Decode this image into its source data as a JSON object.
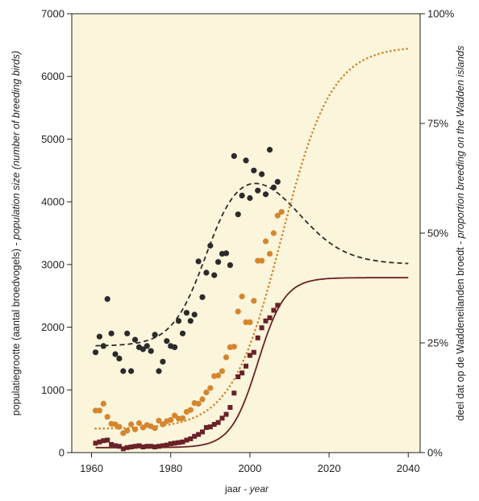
{
  "chart_data": {
    "type": "scatter",
    "xlim": [
      1955,
      2043
    ],
    "ylim_left": [
      0,
      7000
    ],
    "ylim_right": [
      0,
      1
    ],
    "x_ticks": [
      1960,
      1980,
      2000,
      2020,
      2040
    ],
    "y_left_ticks": [
      0,
      1000,
      2000,
      3000,
      4000,
      5000,
      6000,
      7000
    ],
    "y_right_ticks": [
      {
        "value": 0,
        "label": "0%"
      },
      {
        "value": 0.25,
        "label": "25%"
      },
      {
        "value": 0.5,
        "label": "50%"
      },
      {
        "value": 0.75,
        "label": "75%"
      },
      {
        "value": 1,
        "label": "100%"
      }
    ],
    "xlabel_nl": "jaar - ",
    "xlabel_en": "year",
    "ylabel_left_nl": "populatiegrootte (aantal broedvogels) - ",
    "ylabel_left_en": "population size (number of breeding birds)",
    "ylabel_right_nl": "deel dat op de Waddeneilanden broedt - ",
    "ylabel_right_en": "proportion breeding on the Wadden islands",
    "grid": false,
    "colors": {
      "background": "#fbf5dc",
      "dark": "#2b2b2b",
      "orange": "#d4862e",
      "maroon": "#6b2128"
    },
    "series": [
      {
        "marker": "circle",
        "color": "#2b2b2b",
        "axis": "left",
        "points": [
          [
            1961,
            1600
          ],
          [
            1962,
            1850
          ],
          [
            1963,
            1700
          ],
          [
            1964,
            2450
          ],
          [
            1965,
            1900
          ],
          [
            1966,
            1570
          ],
          [
            1967,
            1500
          ],
          [
            1968,
            1300
          ],
          [
            1969,
            1900
          ],
          [
            1970,
            1300
          ],
          [
            1971,
            1800
          ],
          [
            1972,
            1680
          ],
          [
            1973,
            1650
          ],
          [
            1974,
            1700
          ],
          [
            1975,
            1620
          ],
          [
            1976,
            1880
          ],
          [
            1977,
            1300
          ],
          [
            1978,
            1450
          ],
          [
            1979,
            1780
          ],
          [
            1980,
            1700
          ],
          [
            1981,
            1680
          ],
          [
            1982,
            2100
          ],
          [
            1983,
            1900
          ],
          [
            1984,
            2230
          ],
          [
            1985,
            2100
          ],
          [
            1986,
            2200
          ],
          [
            1987,
            3050
          ],
          [
            1988,
            2480
          ],
          [
            1989,
            2870
          ],
          [
            1990,
            3300
          ],
          [
            1991,
            2830
          ],
          [
            1992,
            3040
          ],
          [
            1993,
            3170
          ],
          [
            1994,
            3180
          ],
          [
            1995,
            2990
          ],
          [
            1996,
            4730
          ],
          [
            1997,
            3800
          ],
          [
            1998,
            4100
          ],
          [
            1999,
            4660
          ],
          [
            2000,
            4060
          ],
          [
            2001,
            4500
          ],
          [
            2002,
            4180
          ],
          [
            2003,
            4440
          ],
          [
            2004,
            4120
          ],
          [
            2005,
            4830
          ],
          [
            2006,
            4230
          ],
          [
            2007,
            4320
          ]
        ]
      },
      {
        "marker": "circle",
        "color": "#d4862e",
        "axis": "left",
        "points": [
          [
            1961,
            670
          ],
          [
            1962,
            670
          ],
          [
            1963,
            780
          ],
          [
            1964,
            570
          ],
          [
            1965,
            460
          ],
          [
            1966,
            450
          ],
          [
            1967,
            410
          ],
          [
            1968,
            310
          ],
          [
            1969,
            350
          ],
          [
            1970,
            450
          ],
          [
            1971,
            370
          ],
          [
            1972,
            470
          ],
          [
            1973,
            400
          ],
          [
            1974,
            440
          ],
          [
            1975,
            420
          ],
          [
            1976,
            390
          ],
          [
            1977,
            510
          ],
          [
            1978,
            450
          ],
          [
            1979,
            500
          ],
          [
            1980,
            520
          ],
          [
            1981,
            590
          ],
          [
            1982,
            540
          ],
          [
            1983,
            550
          ],
          [
            1984,
            650
          ],
          [
            1985,
            680
          ],
          [
            1986,
            790
          ],
          [
            1987,
            780
          ],
          [
            1988,
            850
          ],
          [
            1989,
            960
          ],
          [
            1990,
            1030
          ],
          [
            1991,
            1220
          ],
          [
            1992,
            1230
          ],
          [
            1993,
            1300
          ],
          [
            1994,
            1520
          ],
          [
            1995,
            1680
          ],
          [
            1996,
            1690
          ],
          [
            1997,
            2250
          ],
          [
            1998,
            2490
          ],
          [
            1999,
            2080
          ],
          [
            2000,
            2080
          ],
          [
            2001,
            2420
          ],
          [
            2002,
            3060
          ],
          [
            2003,
            3060
          ],
          [
            2004,
            3370
          ],
          [
            2005,
            3170
          ],
          [
            2006,
            3500
          ],
          [
            2007,
            3780
          ],
          [
            2008,
            3840
          ]
        ]
      },
      {
        "marker": "square",
        "color": "#6b2128",
        "axis": "left",
        "points": [
          [
            1961,
            150
          ],
          [
            1962,
            170
          ],
          [
            1963,
            190
          ],
          [
            1964,
            200
          ],
          [
            1965,
            130
          ],
          [
            1966,
            110
          ],
          [
            1967,
            100
          ],
          [
            1968,
            60
          ],
          [
            1969,
            80
          ],
          [
            1970,
            90
          ],
          [
            1971,
            100
          ],
          [
            1972,
            110
          ],
          [
            1973,
            90
          ],
          [
            1974,
            100
          ],
          [
            1975,
            100
          ],
          [
            1976,
            90
          ],
          [
            1977,
            100
          ],
          [
            1978,
            110
          ],
          [
            1979,
            120
          ],
          [
            1980,
            140
          ],
          [
            1981,
            150
          ],
          [
            1982,
            160
          ],
          [
            1983,
            170
          ],
          [
            1984,
            200
          ],
          [
            1985,
            220
          ],
          [
            1986,
            260
          ],
          [
            1987,
            290
          ],
          [
            1988,
            330
          ],
          [
            1989,
            400
          ],
          [
            1990,
            410
          ],
          [
            1991,
            450
          ],
          [
            1992,
            480
          ],
          [
            1993,
            550
          ],
          [
            1994,
            610
          ],
          [
            1995,
            720
          ],
          [
            1996,
            950
          ],
          [
            1997,
            1210
          ],
          [
            1998,
            1270
          ],
          [
            1999,
            1380
          ],
          [
            2000,
            1550
          ],
          [
            2001,
            1600
          ],
          [
            2002,
            1830
          ],
          [
            2003,
            1990
          ],
          [
            2004,
            2100
          ],
          [
            2005,
            2150
          ],
          [
            2006,
            2270
          ],
          [
            2007,
            2350
          ]
        ]
      }
    ],
    "curves": [
      {
        "style": "dashed",
        "color": "#2b2b2b",
        "function": "hump",
        "axis": "left"
      },
      {
        "style": "dotted",
        "color": "#d4862e",
        "function": "logistic-up",
        "axis": "left"
      },
      {
        "style": "solid",
        "color": "#6b2128",
        "function": "logistic-mid",
        "axis": "left"
      }
    ]
  }
}
